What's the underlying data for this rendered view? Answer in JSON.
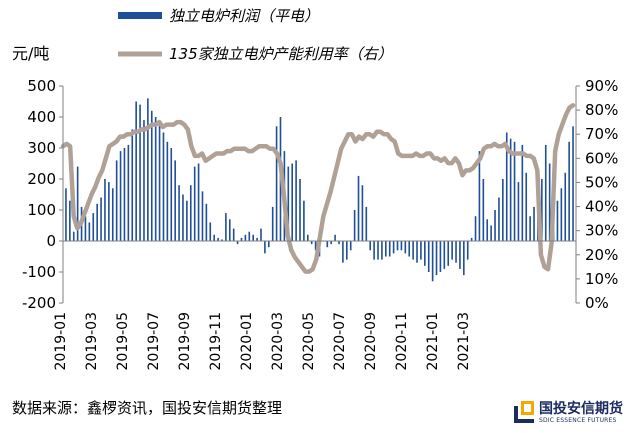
{
  "chart_data": {
    "type": "bar+line",
    "legend": {
      "bar_label": "独立电炉利润（平电）",
      "line_label": "135家独立电炉产能利用率（右）",
      "placement": "top"
    },
    "left_axis": {
      "unit": "元/吨",
      "range": [
        -200,
        500
      ],
      "ticks": [
        "-200",
        "-100",
        "0",
        "100",
        "200",
        "300",
        "400",
        "500"
      ]
    },
    "right_axis": {
      "range": [
        0,
        90
      ],
      "ticks": [
        "0%",
        "10%",
        "20%",
        "30%",
        "40%",
        "50%",
        "60%",
        "70%",
        "80%",
        "90%"
      ]
    },
    "x_ticks": [
      "2019-01",
      "2019-03",
      "2019-05",
      "2019-07",
      "2019-09",
      "2019-11",
      "2020-01",
      "2020-03",
      "2020-05",
      "2020-07",
      "2020-09",
      "2020-11",
      "2021-01",
      "2021-03"
    ],
    "grid": false,
    "bar_color": "#1f4e9a",
    "line_color": "#b0a197",
    "bar_values": [
      170,
      130,
      30,
      240,
      110,
      80,
      60,
      90,
      120,
      140,
      200,
      190,
      170,
      260,
      290,
      300,
      310,
      360,
      450,
      440,
      390,
      460,
      420,
      400,
      380,
      350,
      320,
      300,
      260,
      180,
      150,
      130,
      180,
      240,
      250,
      160,
      120,
      60,
      20,
      10,
      5,
      90,
      70,
      40,
      -10,
      10,
      20,
      30,
      20,
      10,
      40,
      -40,
      -20,
      110,
      370,
      400,
      290,
      240,
      250,
      260,
      200,
      130,
      20,
      -10,
      -30,
      -50,
      0,
      -20,
      -10,
      20,
      -10,
      -70,
      -60,
      -30,
      100,
      210,
      180,
      110,
      -30,
      -60,
      -60,
      -60,
      -50,
      -50,
      -40,
      -30,
      -30,
      -40,
      -50,
      -60,
      -70,
      -60,
      -80,
      -100,
      -130,
      -110,
      -100,
      -90,
      -80,
      -60,
      -70,
      -90,
      -110,
      -60,
      10,
      80,
      290,
      200,
      70,
      50,
      100,
      140,
      200,
      350,
      330,
      320,
      190,
      310,
      220,
      80,
      110,
      110,
      200,
      310,
      250,
      210,
      130,
      170,
      220,
      320,
      370
    ],
    "line_values": [
      65,
      66,
      65,
      36,
      31,
      33,
      37,
      41,
      45,
      48,
      52,
      55,
      60,
      65,
      66,
      67,
      69,
      69,
      70,
      70,
      71,
      71,
      72,
      72,
      73,
      74,
      74,
      75,
      73,
      74,
      74,
      74,
      75,
      75,
      74,
      72,
      65,
      61,
      61,
      62,
      59,
      60,
      61,
      62,
      62,
      62,
      63,
      63,
      64,
      64,
      64,
      64,
      63,
      63,
      64,
      65,
      65,
      65,
      64,
      64,
      62,
      58,
      44,
      28,
      22,
      19,
      17,
      15,
      13,
      13,
      14,
      18,
      27,
      36,
      41,
      46,
      52,
      58,
      64,
      67,
      70,
      70,
      67,
      69,
      68,
      70,
      70,
      69,
      71,
      71,
      70,
      70,
      68,
      67,
      62,
      61,
      61,
      61,
      61,
      62,
      61,
      61,
      62,
      62,
      60,
      60,
      59,
      60,
      58,
      58,
      60,
      58,
      53,
      55,
      55,
      56,
      58,
      60,
      64,
      65,
      65,
      66,
      65,
      65,
      66,
      63,
      62,
      62,
      62,
      62,
      61,
      61,
      60,
      55,
      20,
      15,
      14,
      25,
      63,
      70,
      74,
      78,
      81,
      82
    ]
  },
  "footer": {
    "source": "数据来源：鑫椤资讯，国投安信期货整理",
    "logo_cn": "国投安信期货",
    "logo_en": "SDIC ESSENCE FUTURES"
  }
}
